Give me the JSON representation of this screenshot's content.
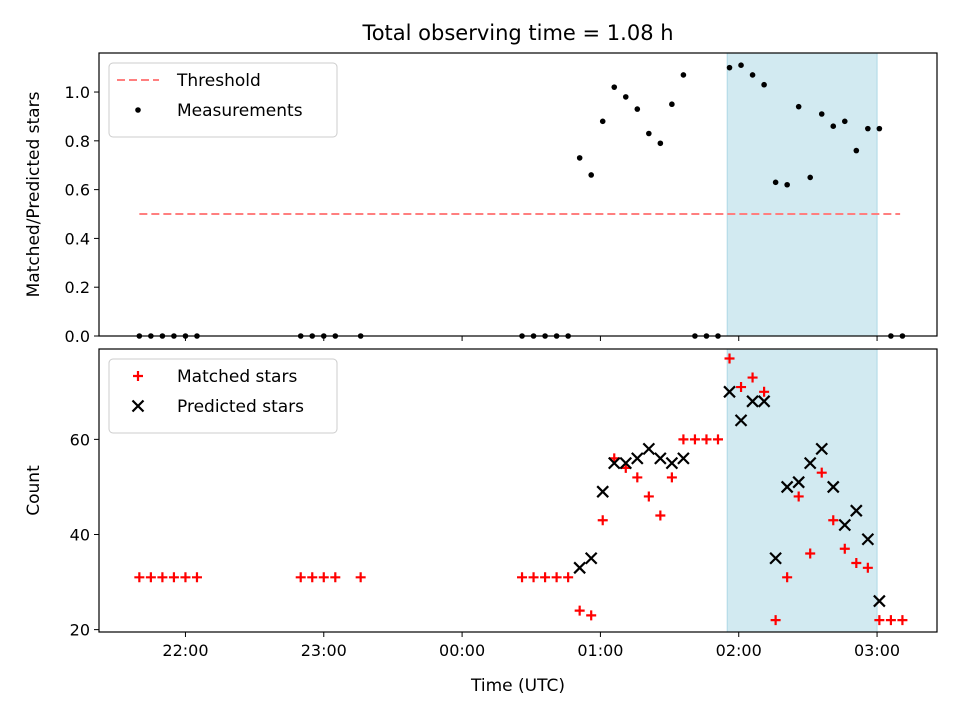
{
  "chart_data": {
    "title": "Total observing time = 1.08 h",
    "xlabel": "Time (UTC)",
    "x_tick_labels": [
      "22:00",
      "23:00",
      "00:00",
      "01:00",
      "02:00",
      "03:00"
    ],
    "highlight_span": {
      "start": "01:55",
      "end": "03:00",
      "color": "#add8e6"
    },
    "panels": [
      {
        "type": "scatter",
        "ylabel": "Matched/Predicted stars",
        "ylim": [
          0,
          1.16
        ],
        "y_ticks": [
          "0.0",
          "0.2",
          "0.4",
          "0.6",
          "0.8",
          "1.0"
        ],
        "legend_position": "top-left",
        "threshold": {
          "name": "Threshold",
          "value": 0.5,
          "x_start": "21:40",
          "x_end": "03:10",
          "color": "#ff7f7f"
        },
        "series": [
          {
            "name": "Measurements",
            "color": "#000000",
            "marker": "dot",
            "points": [
              [
                "21:40",
                0
              ],
              [
                "21:45",
                0
              ],
              [
                "21:50",
                0
              ],
              [
                "21:55",
                0
              ],
              [
                "22:00",
                0
              ],
              [
                "22:05",
                0
              ],
              [
                "22:50",
                0
              ],
              [
                "22:55",
                0
              ],
              [
                "23:00",
                0
              ],
              [
                "23:05",
                0
              ],
              [
                "23:16",
                0
              ],
              [
                "00:26",
                0
              ],
              [
                "00:31",
                0
              ],
              [
                "00:36",
                0
              ],
              [
                "00:41",
                0
              ],
              [
                "00:46",
                0
              ],
              [
                "00:51",
                0.73
              ],
              [
                "00:56",
                0.66
              ],
              [
                "01:01",
                0.88
              ],
              [
                "01:06",
                1.02
              ],
              [
                "01:11",
                0.98
              ],
              [
                "01:16",
                0.93
              ],
              [
                "01:21",
                0.83
              ],
              [
                "01:26",
                0.79
              ],
              [
                "01:31",
                0.95
              ],
              [
                "01:36",
                1.07
              ],
              [
                "01:41",
                0
              ],
              [
                "01:46",
                0
              ],
              [
                "01:51",
                0
              ],
              [
                "01:56",
                1.1
              ],
              [
                "02:01",
                1.11
              ],
              [
                "02:06",
                1.07
              ],
              [
                "02:11",
                1.03
              ],
              [
                "02:16",
                0.63
              ],
              [
                "02:21",
                0.62
              ],
              [
                "02:26",
                0.94
              ],
              [
                "02:31",
                0.65
              ],
              [
                "02:36",
                0.91
              ],
              [
                "02:41",
                0.86
              ],
              [
                "02:46",
                0.88
              ],
              [
                "02:51",
                0.76
              ],
              [
                "02:56",
                0.85
              ],
              [
                "03:01",
                0.85
              ],
              [
                "03:06",
                0
              ],
              [
                "03:11",
                0
              ]
            ]
          }
        ]
      },
      {
        "type": "scatter",
        "ylabel": "Count",
        "ylim": [
          19.5,
          79
        ],
        "y_ticks": [
          "20",
          "40",
          "60"
        ],
        "legend_position": "top-left",
        "series": [
          {
            "name": "Matched stars",
            "color": "#ff0000",
            "marker": "plus",
            "points": [
              [
                "21:40",
                31
              ],
              [
                "21:45",
                31
              ],
              [
                "21:50",
                31
              ],
              [
                "21:55",
                31
              ],
              [
                "22:00",
                31
              ],
              [
                "22:05",
                31
              ],
              [
                "22:50",
                31
              ],
              [
                "22:55",
                31
              ],
              [
                "23:00",
                31
              ],
              [
                "23:05",
                31
              ],
              [
                "23:16",
                31
              ],
              [
                "00:26",
                31
              ],
              [
                "00:31",
                31
              ],
              [
                "00:36",
                31
              ],
              [
                "00:41",
                31
              ],
              [
                "00:46",
                31
              ],
              [
                "00:51",
                24
              ],
              [
                "00:56",
                23
              ],
              [
                "01:01",
                43
              ],
              [
                "01:06",
                56
              ],
              [
                "01:11",
                54
              ],
              [
                "01:16",
                52
              ],
              [
                "01:21",
                48
              ],
              [
                "01:26",
                44
              ],
              [
                "01:31",
                52
              ],
              [
                "01:36",
                60
              ],
              [
                "01:41",
                60
              ],
              [
                "01:46",
                60
              ],
              [
                "01:51",
                60
              ],
              [
                "01:56",
                77
              ],
              [
                "02:01",
                71
              ],
              [
                "02:06",
                73
              ],
              [
                "02:11",
                70
              ],
              [
                "02:16",
                22
              ],
              [
                "02:21",
                31
              ],
              [
                "02:26",
                48
              ],
              [
                "02:31",
                36
              ],
              [
                "02:36",
                53
              ],
              [
                "02:41",
                43
              ],
              [
                "02:46",
                37
              ],
              [
                "02:51",
                34
              ],
              [
                "02:56",
                33
              ],
              [
                "03:01",
                22
              ],
              [
                "03:06",
                22
              ],
              [
                "03:11",
                22
              ]
            ]
          },
          {
            "name": "Predicted stars",
            "color": "#000000",
            "marker": "x",
            "points": [
              [
                "00:51",
                33
              ],
              [
                "00:56",
                35
              ],
              [
                "01:01",
                49
              ],
              [
                "01:06",
                55
              ],
              [
                "01:11",
                55
              ],
              [
                "01:16",
                56
              ],
              [
                "01:21",
                58
              ],
              [
                "01:26",
                56
              ],
              [
                "01:31",
                55
              ],
              [
                "01:36",
                56
              ],
              [
                "01:56",
                70
              ],
              [
                "02:01",
                64
              ],
              [
                "02:06",
                68
              ],
              [
                "02:11",
                68
              ],
              [
                "02:16",
                35
              ],
              [
                "02:21",
                50
              ],
              [
                "02:26",
                51
              ],
              [
                "02:31",
                55
              ],
              [
                "02:36",
                58
              ],
              [
                "02:41",
                50
              ],
              [
                "02:46",
                42
              ],
              [
                "02:51",
                45
              ],
              [
                "02:56",
                39
              ],
              [
                "03:01",
                26
              ]
            ]
          }
        ]
      }
    ]
  }
}
